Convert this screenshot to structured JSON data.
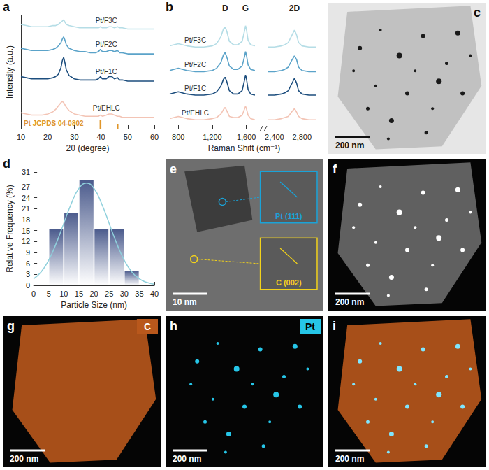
{
  "chart_data": [
    {
      "panel": "a",
      "type": "line",
      "x_label": "2θ (degree)",
      "y_label": "Intensity (a.u.)",
      "x": [
        10,
        12,
        14,
        16,
        18,
        20,
        22,
        23,
        24,
        25,
        25.5,
        26,
        26.5,
        27,
        28,
        30,
        32,
        34,
        36,
        38,
        39,
        39.8,
        40.5,
        42,
        43,
        44,
        45,
        46.2,
        47,
        48,
        50,
        52,
        54,
        56,
        58,
        60
      ],
      "series": [
        {
          "name": "Pt/F3C",
          "color": "#b5dde6",
          "values": [
            92,
            91,
            90,
            90,
            90,
            90,
            91,
            91,
            92,
            94,
            95,
            96,
            94,
            92,
            91,
            90,
            89,
            89,
            89,
            89,
            89,
            90,
            89,
            89,
            90,
            90,
            89,
            90,
            89,
            89,
            88,
            88,
            88,
            88,
            88,
            88
          ]
        },
        {
          "name": "Pt/F2C",
          "color": "#5ba3c9",
          "values": [
            71,
            70,
            69,
            69,
            69,
            69,
            70,
            71,
            73,
            76,
            79,
            81,
            78,
            74,
            71,
            69,
            68,
            68,
            67,
            67,
            68,
            70,
            68,
            68,
            69,
            69,
            68,
            69,
            67,
            67,
            66,
            66,
            66,
            66,
            66,
            66
          ]
        },
        {
          "name": "Pt/F1C",
          "color": "#1d4e7e",
          "values": [
            46,
            45,
            44,
            44,
            44,
            44,
            45,
            46,
            48,
            54,
            60,
            63,
            58,
            52,
            47,
            44,
            43,
            43,
            43,
            43,
            44,
            46,
            44,
            44,
            46,
            46,
            44,
            45,
            43,
            43,
            42,
            42,
            42,
            42,
            42,
            42
          ]
        },
        {
          "name": "Pt/EHLC",
          "color": "#f3c4b5",
          "values": [
            14,
            13,
            12,
            12,
            12,
            13,
            15,
            17,
            20,
            23,
            24,
            23,
            21,
            19,
            16,
            13,
            12,
            11,
            11,
            11,
            11,
            12,
            11,
            12,
            13,
            13,
            12,
            11,
            11,
            10,
            10,
            10,
            10,
            10,
            10,
            10
          ]
        }
      ],
      "reference": {
        "name": "Pt JCPDS 04-0802",
        "color": "#e0962a",
        "x": [
          39.8,
          46.2
        ],
        "values": [
          8,
          4
        ]
      },
      "xlim": [
        10,
        60
      ],
      "xticks": [
        10,
        20,
        30,
        40,
        50,
        60
      ],
      "ylim": [
        0,
        100
      ],
      "tick_labels": "x"
    },
    {
      "panel": "b",
      "type": "line",
      "x_label": "Raman Shift (cm⁻¹)",
      "x": [
        700,
        800,
        900,
        1000,
        1100,
        1200,
        1250,
        1300,
        1330,
        1350,
        1370,
        1400,
        1450,
        1500,
        1550,
        1580,
        1590,
        1600,
        1620,
        1650,
        1700,
        2300,
        2400,
        2500,
        2550,
        2600,
        2650,
        2690,
        2720,
        2750,
        2800,
        2900,
        3000
      ],
      "series": [
        {
          "name": "Pt/F3C",
          "color": "#b5dde6",
          "values": [
            74,
            76,
            74,
            73,
            73,
            74,
            76,
            82,
            89,
            91,
            87,
            78,
            75,
            75,
            78,
            88,
            92,
            89,
            79,
            75,
            74,
            73,
            73,
            74,
            75,
            77,
            83,
            88,
            84,
            77,
            74,
            73,
            73
          ]
        },
        {
          "name": "Pt/F2C",
          "color": "#5ba3c9",
          "values": [
            52,
            54,
            52,
            51,
            51,
            52,
            54,
            59,
            66,
            68,
            64,
            56,
            53,
            53,
            56,
            65,
            69,
            66,
            57,
            53,
            52,
            51,
            51,
            52,
            53,
            55,
            61,
            65,
            62,
            55,
            52,
            51,
            51
          ]
        },
        {
          "name": "Pt/F1C",
          "color": "#1d4e7e",
          "values": [
            31,
            33,
            31,
            30,
            30,
            31,
            33,
            38,
            44,
            46,
            42,
            34,
            31,
            31,
            34,
            44,
            48,
            45,
            35,
            31,
            30,
            30,
            30,
            31,
            32,
            34,
            40,
            45,
            41,
            34,
            31,
            30,
            30
          ]
        },
        {
          "name": "Pt/EHLC",
          "color": "#f3c4b5",
          "values": [
            9,
            11,
            9,
            8,
            8,
            9,
            10,
            13,
            17,
            19,
            16,
            11,
            10,
            10,
            12,
            18,
            20,
            18,
            12,
            9,
            8,
            8,
            8,
            9,
            10,
            11,
            15,
            18,
            15,
            11,
            9,
            8,
            8
          ]
        }
      ],
      "annotations": [
        {
          "text": "D",
          "x": 1350
        },
        {
          "text": "G",
          "x": 1590
        },
        {
          "text": "2D",
          "x": 2690
        }
      ],
      "xlim": [
        [
          700,
          1750
        ],
        [
          2300,
          3050
        ]
      ],
      "xticks": [
        [
          800,
          1200,
          1600
        ],
        [
          2400,
          2800
        ]
      ],
      "ylim": [
        0,
        100
      ],
      "tick_labels": "x"
    },
    {
      "panel": "d",
      "type": "histogram",
      "x_label": "Particle Size (nm)",
      "y_label": "Relative Frequency (%)",
      "bins": [
        5,
        10,
        15,
        20,
        25,
        30,
        35
      ],
      "values": [
        15.5,
        20,
        29,
        15.5,
        15.5,
        4
      ],
      "color": "#4a5a8c",
      "fit": {
        "type": "line",
        "color": "#8fd0dc",
        "x": [
          0,
          2.5,
          5,
          7.5,
          10,
          12.5,
          15,
          17.5,
          20,
          22.5,
          25,
          27.5,
          30,
          32.5,
          35,
          37.5,
          40
        ],
        "values": [
          1.8,
          3.7,
          6.9,
          11.5,
          17,
          22.4,
          26.5,
          28,
          26.5,
          22.4,
          17,
          11.5,
          6.9,
          3.7,
          1.8,
          0.8,
          0.3
        ]
      },
      "xlim": [
        0,
        40
      ],
      "xticks": [
        0,
        5,
        10,
        15,
        20,
        25,
        30,
        35,
        40
      ],
      "ylim": [
        0,
        31
      ],
      "yticks": [
        0,
        3,
        6,
        9,
        12,
        15,
        18,
        21,
        24,
        27,
        31
      ]
    }
  ],
  "image_panels": [
    {
      "letter": "c",
      "scale_bar": "200 nm"
    },
    {
      "letter": "e",
      "scale_bar": "10 nm",
      "insets": [
        "Pt (111)",
        "C (002)"
      ]
    },
    {
      "letter": "f",
      "scale_bar": "200 nm"
    },
    {
      "letter": "g",
      "scale_bar": "200 nm",
      "element": "C"
    },
    {
      "letter": "h",
      "scale_bar": "200 nm",
      "element": "Pt"
    },
    {
      "letter": "i",
      "scale_bar": "200 nm"
    }
  ]
}
